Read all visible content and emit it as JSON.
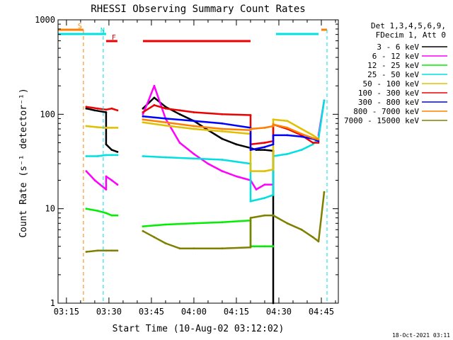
{
  "chart_data": {
    "type": "line",
    "title": "RHESSI Observing Summary Count Rates",
    "xlabel": "Start Time (10-Aug-02 03:12:02)",
    "ylabel": "Count Rate (s⁻¹ detector⁻¹)",
    "x_scale": "time",
    "y_scale": "log",
    "xlim": [
      "03:12:02",
      "04:51:00"
    ],
    "ylim": [
      1,
      1000
    ],
    "x_ticks": [
      "03:15",
      "03:30",
      "03:45",
      "04:00",
      "04:15",
      "04:30",
      "04:45"
    ],
    "y_ticks": [
      "1",
      "10",
      "100",
      "1000"
    ],
    "footer": "18-Oct-2021 03:11",
    "legend": {
      "position": "right",
      "header": [
        "Det 1,3,4,5,6,9,",
        "FDecim 1, Att 0"
      ],
      "entries": [
        {
          "label": "3 - 6 keV",
          "color": "#000000"
        },
        {
          "label": "6 - 12 keV",
          "color": "#ff00ff"
        },
        {
          "label": "12 - 25 keV",
          "color": "#00ee00"
        },
        {
          "label": "25 - 50 keV",
          "color": "#00e0e0"
        },
        {
          "label": "50 - 100 keV",
          "color": "#e0c000"
        },
        {
          "label": "100 - 300 keV",
          "color": "#ee0000"
        },
        {
          "label": "300 - 800 keV",
          "color": "#0000ff"
        },
        {
          "label": "800 - 7000 keV",
          "color": "#ff8000"
        },
        {
          "label": "7000 - 15000 keV",
          "color": "#808000"
        }
      ]
    },
    "flags": [
      {
        "label": "S",
        "color": "#ff8000",
        "x_start": "03:12",
        "x_end": "03:21"
      },
      {
        "label": "N",
        "color": "#00e0e0",
        "x_start": "03:12",
        "x_end": "03:29"
      },
      {
        "label": "F",
        "color": "#ee0000",
        "x_start": "03:29",
        "x_end": "03:33"
      },
      {
        "label": "",
        "color": "#ee0000",
        "x_start": "03:42",
        "x_end": "04:20"
      },
      {
        "label": "",
        "color": "#00e0e0",
        "x_start": "04:29",
        "x_end": "04:44"
      },
      {
        "label": "",
        "color": "#ff8000",
        "x_start": "04:45",
        "x_end": "04:47"
      }
    ],
    "vlines": [
      {
        "x": "03:21",
        "color": "#ff8000",
        "style": "dashed"
      },
      {
        "x": "03:28",
        "color": "#00e0e0",
        "style": "dashed"
      },
      {
        "x": "04:47",
        "color": "#00e0e0",
        "style": "dashed"
      }
    ],
    "series": [
      {
        "name": "3 - 6 keV",
        "color": "#000000",
        "x": [
          "03:22",
          "03:25",
          "03:29",
          "03:29",
          "03:31",
          "03:33",
          "03:33",
          "03:42",
          "03:42",
          "03:46",
          "03:50",
          "03:55",
          "04:00",
          "04:05",
          "04:10",
          "04:15",
          "04:20",
          "04:20",
          "04:22",
          "04:25",
          "04:28",
          "04:28",
          "04:29"
        ],
        "y": [
          115,
          110,
          105,
          48,
          42,
          40,
          null,
          null,
          115,
          150,
          120,
          100,
          85,
          68,
          55,
          48,
          44,
          44,
          42,
          42,
          41,
          1,
          null
        ]
      },
      {
        "name": "6 - 12 keV",
        "color": "#ff00ff",
        "x": [
          "03:22",
          "03:25",
          "03:29",
          "03:29",
          "03:31",
          "03:33",
          "03:33",
          "03:42",
          "03:42",
          "03:44",
          "03:46",
          "03:50",
          "03:55",
          "04:00",
          "04:05",
          "04:10",
          "04:15",
          "04:20",
          "04:20",
          "04:22",
          "04:25",
          "04:28",
          "04:28",
          "04:44",
          "04:44",
          "04:46"
        ],
        "y": [
          25,
          20,
          16,
          22,
          20,
          18,
          null,
          null,
          100,
          140,
          200,
          90,
          50,
          38,
          30,
          25,
          22,
          20,
          20,
          16,
          18,
          18,
          null,
          null,
          60,
          140
        ]
      },
      {
        "name": "12 - 25 keV",
        "color": "#00ee00",
        "x": [
          "03:22",
          "03:26",
          "03:29",
          "03:31",
          "03:33",
          "03:33",
          "03:42",
          "03:42",
          "03:50",
          "04:00",
          "04:10",
          "04:20",
          "04:20",
          "04:25",
          "04:28",
          "04:28"
        ],
        "y": [
          10,
          9.5,
          9,
          8.5,
          8.5,
          null,
          null,
          6.5,
          6.8,
          7,
          7.2,
          7.5,
          4,
          4,
          4,
          null
        ]
      },
      {
        "name": "25 - 50 keV",
        "color": "#00e0e0",
        "x": [
          "03:22",
          "03:26",
          "03:29",
          "03:31",
          "03:33",
          "03:33",
          "03:42",
          "03:42",
          "03:50",
          "04:00",
          "04:10",
          "04:20",
          "04:20",
          "04:25",
          "04:28",
          "04:28",
          "04:33",
          "04:38",
          "04:42",
          "04:44",
          "04:46"
        ],
        "y": [
          36,
          36,
          37,
          37,
          37,
          null,
          null,
          36,
          35,
          34,
          33,
          30,
          12,
          13,
          14,
          36,
          38,
          42,
          48,
          55,
          140
        ]
      },
      {
        "name": "50 - 100 keV",
        "color": "#e0c000",
        "x": [
          "03:22",
          "03:26",
          "03:29",
          "03:31",
          "03:33",
          "03:33",
          "03:42",
          "03:42",
          "03:50",
          "04:00",
          "04:10",
          "04:20",
          "04:20",
          "04:25",
          "04:28",
          "04:28",
          "04:33",
          "04:38",
          "04:42",
          "04:44"
        ],
        "y": [
          75,
          73,
          72,
          72,
          72,
          null,
          null,
          82,
          76,
          70,
          66,
          62,
          25,
          25,
          26,
          88,
          85,
          70,
          60,
          55
        ]
      },
      {
        "name": "100 - 300 keV",
        "color": "#ee0000",
        "x": [
          "03:22",
          "03:26",
          "03:29",
          "03:31",
          "03:33",
          "03:33",
          "03:42",
          "03:42",
          "03:46",
          "03:50",
          "03:55",
          "04:00",
          "04:10",
          "04:20",
          "04:20",
          "04:25",
          "04:28",
          "04:28",
          "04:33",
          "04:38",
          "04:42",
          "04:44"
        ],
        "y": [
          120,
          115,
          112,
          115,
          110,
          null,
          null,
          105,
          125,
          115,
          110,
          105,
          100,
          98,
          48,
          50,
          52,
          78,
          70,
          60,
          50,
          50
        ]
      },
      {
        "name": "300 - 800 keV",
        "color": "#0000ff",
        "x": [
          "03:42",
          "03:42",
          "03:50",
          "04:00",
          "04:10",
          "04:20",
          "04:20",
          "04:25",
          "04:28",
          "04:28",
          "04:33",
          "04:38",
          "04:42",
          "04:44"
        ],
        "y": [
          null,
          95,
          90,
          85,
          80,
          72,
          42,
          45,
          48,
          60,
          60,
          58,
          55,
          52
        ]
      },
      {
        "name": "800 - 7000 keV",
        "color": "#ff8000",
        "x": [
          "03:42",
          "03:42",
          "03:50",
          "04:00",
          "04:10",
          "04:20",
          "04:20",
          "04:25",
          "04:28",
          "04:28",
          "04:33",
          "04:38",
          "04:42",
          "04:44"
        ],
        "y": [
          null,
          88,
          82,
          75,
          70,
          68,
          70,
          72,
          75,
          78,
          72,
          62,
          56,
          54
        ]
      },
      {
        "name": "7000 - 15000 keV",
        "color": "#808000",
        "x": [
          "03:22",
          "03:26",
          "03:29",
          "03:31",
          "03:33",
          "03:33",
          "03:42",
          "03:42",
          "03:46",
          "03:50",
          "03:55",
          "04:00",
          "04:10",
          "04:20",
          "04:20",
          "04:25",
          "04:28",
          "04:28",
          "04:33",
          "04:38",
          "04:42",
          "04:44",
          "04:46"
        ],
        "y": [
          3.5,
          3.6,
          3.6,
          3.6,
          3.6,
          null,
          null,
          5.8,
          5,
          4.3,
          3.8,
          3.8,
          3.8,
          3.9,
          8,
          8.5,
          8.5,
          8.5,
          7,
          6,
          5,
          4.5,
          15
        ]
      }
    ]
  }
}
